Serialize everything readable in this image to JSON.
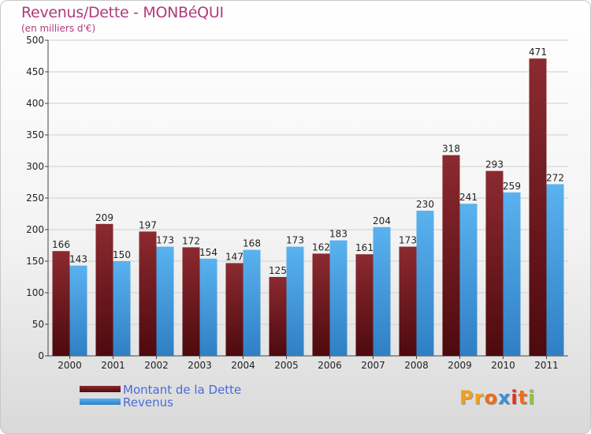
{
  "title": "Revenus/Dette - MONBéQUI",
  "subtitle": "(en milliers d'€)",
  "logo": {
    "text": "Proxiti",
    "letter_colors": [
      "#f0a01e",
      "#f0a01e",
      "#ef6c1a",
      "#3a8fd8",
      "#e2321e",
      "#ef6c1a",
      "#8cc63e"
    ]
  },
  "chart_data": {
    "type": "bar",
    "title": "Revenus/Dette - MONBéQUI",
    "ylabel": "(en milliers d'€)",
    "xlabel": "",
    "ylim": [
      0,
      500
    ],
    "yticks": [
      0,
      50,
      100,
      150,
      200,
      250,
      300,
      350,
      400,
      450,
      500
    ],
    "grid": true,
    "categories": [
      "2000",
      "2001",
      "2002",
      "2003",
      "2004",
      "2005",
      "2006",
      "2007",
      "2008",
      "2009",
      "2010",
      "2011"
    ],
    "series": [
      {
        "name": "Montant de la Dette",
        "color": "#7b1c22",
        "values": [
          166,
          209,
          197,
          172,
          147,
          125,
          162,
          161,
          173,
          318,
          293,
          471
        ]
      },
      {
        "name": "Revenus",
        "color": "#4aa3e6",
        "values": [
          143,
          150,
          173,
          154,
          168,
          173,
          183,
          204,
          230,
          241,
          259,
          272
        ]
      }
    ],
    "legend_position": "bottom-left"
  },
  "legend": {
    "items": [
      {
        "label": "Montant de la Dette",
        "color": "#7b1c22"
      },
      {
        "label": "Revenus",
        "color": "#4aa3e6"
      }
    ]
  }
}
